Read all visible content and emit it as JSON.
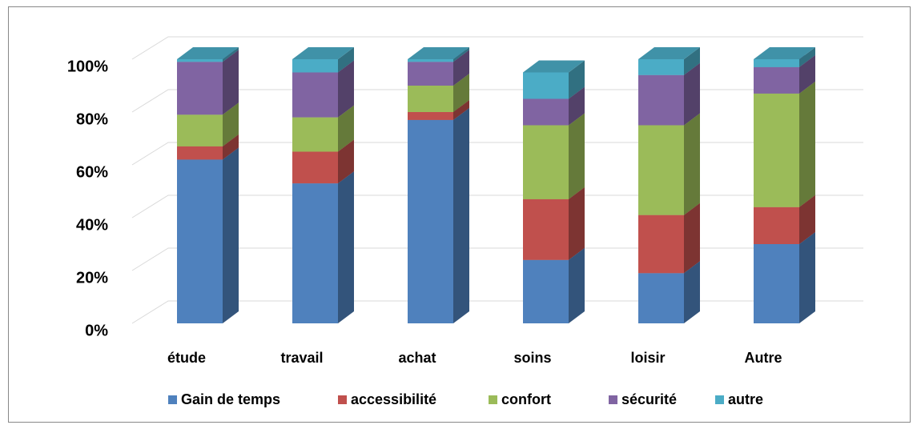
{
  "chart_data": {
    "type": "bar3d_stacked",
    "categories": [
      "étude",
      "travail",
      "achat",
      "soins",
      "loisir",
      "Autre"
    ],
    "series": [
      {
        "name": "Gain de temps",
        "color": "#4f81bd",
        "values": [
          62,
          53,
          77,
          24,
          19,
          30
        ]
      },
      {
        "name": "accessibilité",
        "color": "#c0504d",
        "values": [
          5,
          12,
          3,
          23,
          22,
          14
        ]
      },
      {
        "name": "confort",
        "color": "#9bbb59",
        "values": [
          12,
          13,
          10,
          28,
          34,
          43
        ]
      },
      {
        "name": "sécurité",
        "color": "#8064a2",
        "values": [
          20,
          17,
          9,
          10,
          19,
          10
        ]
      },
      {
        "name": "autre",
        "color": "#4bacc6",
        "values": [
          1,
          5,
          1,
          10,
          6,
          3
        ]
      }
    ],
    "ylim": [
      0,
      100
    ],
    "yticks": [
      {
        "value": 0,
        "label": "0%"
      },
      {
        "value": 20,
        "label": "20%"
      },
      {
        "value": 40,
        "label": "40%"
      },
      {
        "value": 60,
        "label": "60%"
      },
      {
        "value": 80,
        "label": "80%"
      },
      {
        "value": 100,
        "label": "100%"
      }
    ],
    "grid": true,
    "legend": "bottom"
  }
}
